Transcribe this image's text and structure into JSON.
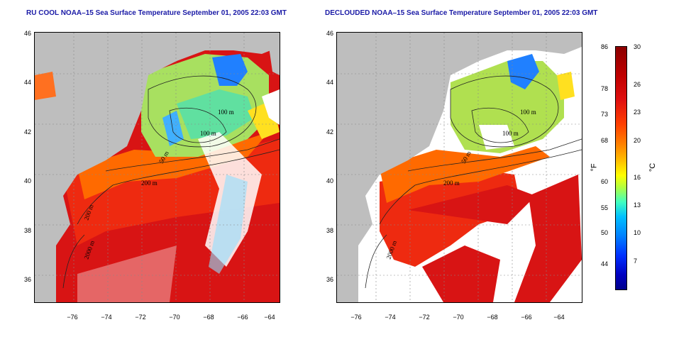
{
  "panels": [
    {
      "title": "RU COOL NOAA–15 Sea Surface Temperature September 01, 2005 22:03 GMT"
    },
    {
      "title": "DECLOUDED NOAA–15 Sea Surface Temperature September 01, 2005 22:03 GMT"
    }
  ],
  "axes": {
    "lat_ticks": [
      "46",
      "44",
      "42",
      "40",
      "38",
      "36"
    ],
    "lon_ticks": [
      "−76",
      "−74",
      "−72",
      "−70",
      "−68",
      "−66",
      "−64"
    ]
  },
  "contour_labels": {
    "c100a": "100 m",
    "c100b": "100 m",
    "c50": "50 m",
    "c200": "200 m",
    "c200b": "200 m",
    "c2000": "2000 m"
  },
  "colorbar": {
    "fahrenheit_ticks": [
      "86",
      "78",
      "73",
      "68",
      "60",
      "55",
      "50",
      "44"
    ],
    "celsius_ticks": [
      "30",
      "26",
      "23",
      "20",
      "16",
      "13",
      "10",
      "7"
    ],
    "fahrenheit_unit": "°F",
    "celsius_unit": "°C",
    "min_c": 4,
    "max_c": 30
  },
  "colors": {
    "land": "#bebebe",
    "warm": "#d01010",
    "hot": "#e60f0f",
    "mid": "#ff6a00",
    "cool": "#a8e060",
    "cold": "#2080ff",
    "title": "#1a1aa6"
  }
}
